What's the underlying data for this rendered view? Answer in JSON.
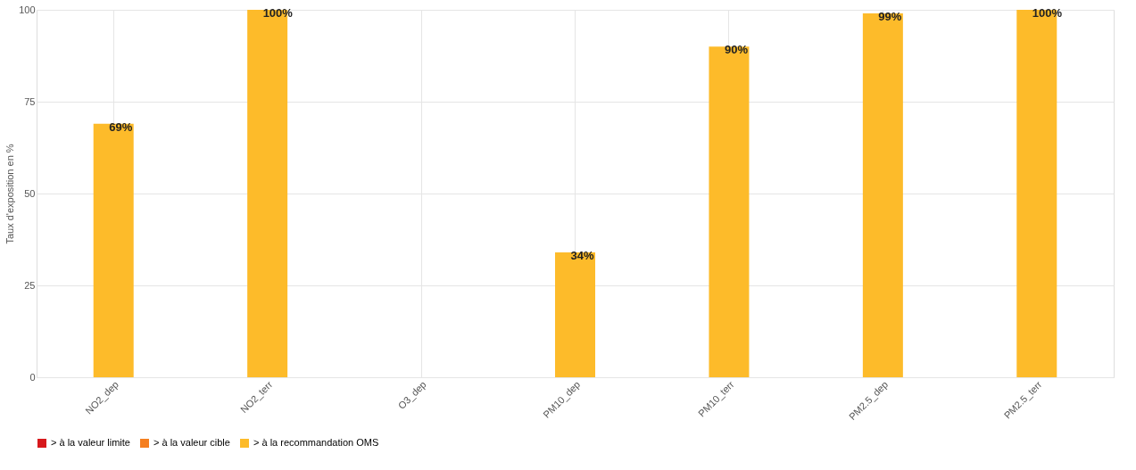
{
  "chart_data": {
    "type": "bar",
    "ylabel": "Taux d'exposition en %",
    "categories": [
      "NO2_dep",
      "NO2_terr",
      "O3_dep",
      "PM10_dep",
      "PM10_terr",
      "PM2.5_dep",
      "PM2.5_terr"
    ],
    "series": [
      {
        "name": "> à la valeur limite",
        "color": "#d7191c",
        "values": [
          null,
          null,
          null,
          null,
          null,
          null,
          null
        ]
      },
      {
        "name": "> à la valeur cible",
        "color": "#f57f20",
        "values": [
          null,
          null,
          null,
          null,
          null,
          null,
          null
        ]
      },
      {
        "name": "> à la recommandation OMS",
        "color": "#fdbb2a",
        "values": [
          69,
          100,
          null,
          34,
          90,
          99,
          100
        ],
        "value_labels": [
          "69%",
          "100%",
          null,
          "34%",
          "90%",
          "99%",
          "100%"
        ]
      }
    ],
    "ylim": [
      0,
      100
    ],
    "yticks": [
      0,
      25,
      50,
      75,
      100
    ],
    "grid": true,
    "legend": "bottom"
  }
}
